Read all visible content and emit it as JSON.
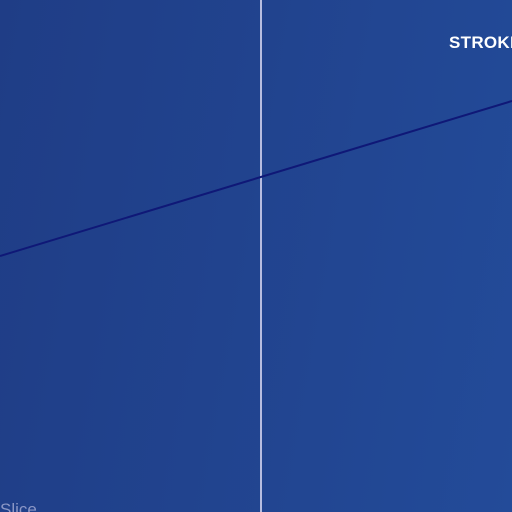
{
  "labels": {
    "stroke": "STROKE",
    "slice": "Slice"
  },
  "colors": {
    "background": "#21438e",
    "stroke_line": "#0f1877",
    "guide_line": "#b7bde0",
    "stroke_label": "#ffffff",
    "slice_label": "#8b97c6"
  }
}
